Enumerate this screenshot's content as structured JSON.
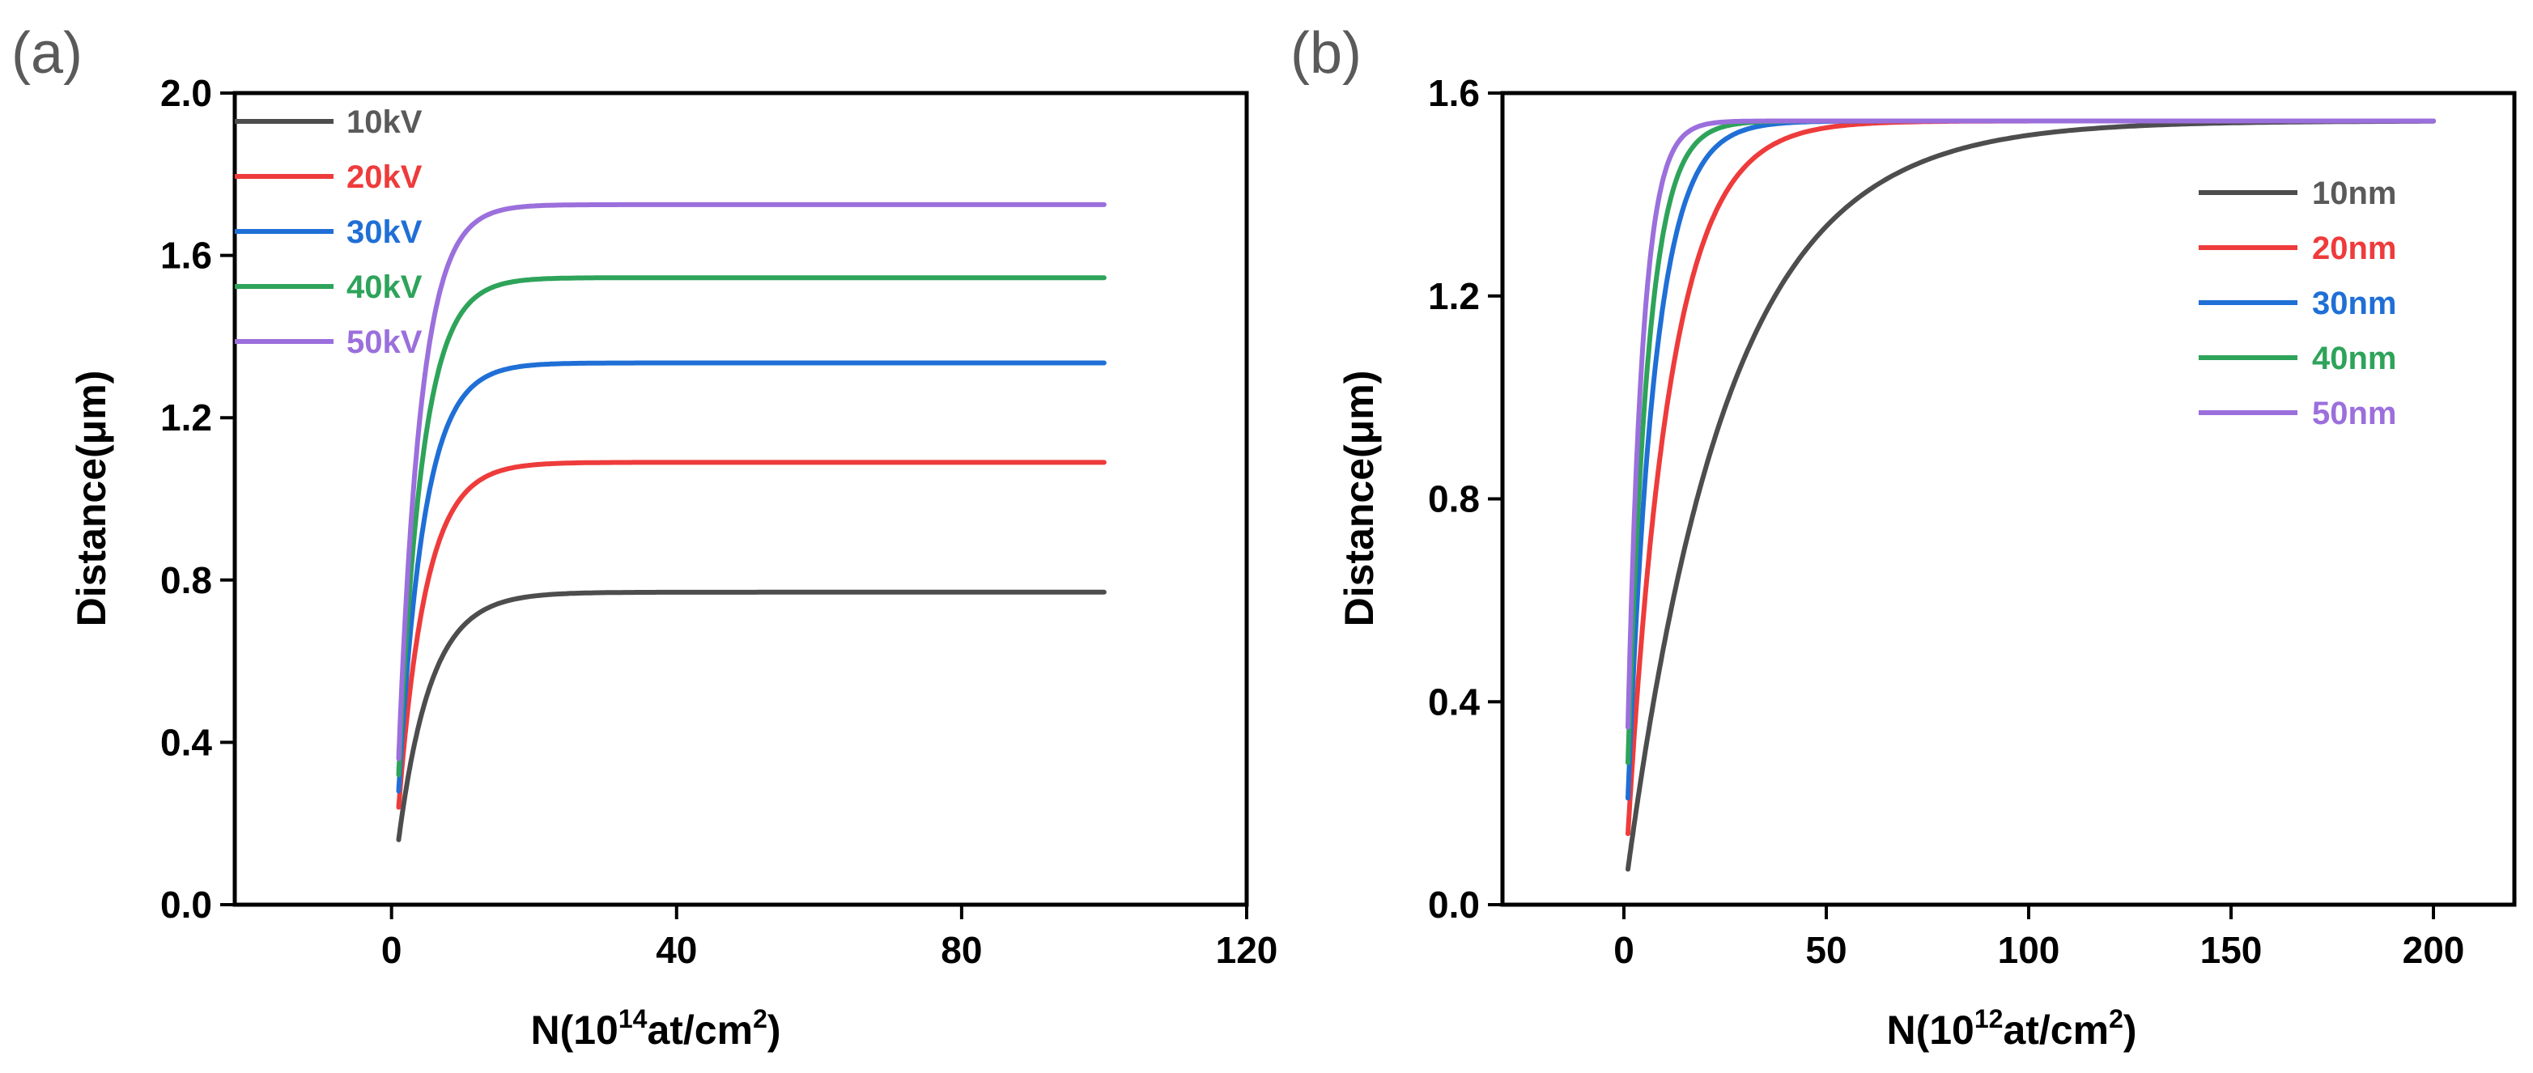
{
  "chart_data": [
    {
      "panel_label": "(a)",
      "type": "line",
      "xlabel_prefix": "N(10",
      "xlabel_sup": "14",
      "xlabel_mid": "at/cm",
      "xlabel_sup2": "2",
      "xlabel_suffix": ")",
      "ylabel": "Distance(μm)",
      "xlim": [
        -22,
        120
      ],
      "ylim": [
        0.0,
        2.0
      ],
      "xticks": [
        0,
        40,
        80,
        120
      ],
      "xtick_labels": [
        "0",
        "40",
        "80",
        "120"
      ],
      "yticks": [
        0.0,
        0.4,
        0.8,
        1.2,
        1.6,
        2.0
      ],
      "ytick_labels": [
        "0.0",
        "0.4",
        "0.8",
        "1.2",
        "1.6",
        "2.0"
      ],
      "legend_position": "top-left",
      "series": [
        {
          "name": "10kV",
          "color": "#4d4d4d",
          "x_start": 1,
          "x_end": 100,
          "y_start": 0.16,
          "plateau": 0.77,
          "rate": 0.22
        },
        {
          "name": "20kV",
          "color": "#ee3b3b",
          "x_start": 1,
          "x_end": 100,
          "y_start": 0.24,
          "plateau": 1.09,
          "rate": 0.26
        },
        {
          "name": "30kV",
          "color": "#1f6fd6",
          "x_start": 1,
          "x_end": 100,
          "y_start": 0.28,
          "plateau": 1.335,
          "rate": 0.28
        },
        {
          "name": "40kV",
          "color": "#2ea35a",
          "x_start": 1,
          "x_end": 100,
          "y_start": 0.32,
          "plateau": 1.545,
          "rate": 0.3
        },
        {
          "name": "50kV",
          "color": "#9b6fdc",
          "x_start": 1,
          "x_end": 100,
          "y_start": 0.36,
          "plateau": 1.725,
          "rate": 0.32
        }
      ]
    },
    {
      "panel_label": "(b)",
      "type": "line",
      "xlabel_prefix": "N(10",
      "xlabel_sup": "12",
      "xlabel_mid": "at/cm",
      "xlabel_sup2": "2",
      "xlabel_suffix": ")",
      "ylabel": "Distance(μm)",
      "xlim": [
        -30,
        220
      ],
      "ylim": [
        0.0,
        1.6
      ],
      "xticks": [
        0,
        50,
        100,
        150,
        200
      ],
      "xtick_labels": [
        "0",
        "50",
        "100",
        "150",
        "200"
      ],
      "yticks": [
        0.0,
        0.4,
        0.8,
        1.2,
        1.6
      ],
      "ytick_labels": [
        "0.0",
        "0.4",
        "0.8",
        "1.2",
        "1.6"
      ],
      "legend_position": "top-right",
      "series": [
        {
          "name": "10nm",
          "color": "#4d4d4d",
          "x_start": 1,
          "x_end": 200,
          "y_start": 0.07,
          "plateau": 1.545,
          "rate": 0.04
        },
        {
          "name": "20nm",
          "color": "#ee3b3b",
          "x_start": 1,
          "x_end": 200,
          "y_start": 0.14,
          "plateau": 1.545,
          "rate": 0.095
        },
        {
          "name": "30nm",
          "color": "#1f6fd6",
          "x_start": 1,
          "x_end": 200,
          "y_start": 0.21,
          "plateau": 1.545,
          "rate": 0.15
        },
        {
          "name": "40nm",
          "color": "#2ea35a",
          "x_start": 1,
          "x_end": 200,
          "y_start": 0.28,
          "plateau": 1.545,
          "rate": 0.2
        },
        {
          "name": "50nm",
          "color": "#9b6fdc",
          "x_start": 1,
          "x_end": 200,
          "y_start": 0.35,
          "plateau": 1.545,
          "rate": 0.27
        }
      ]
    }
  ]
}
